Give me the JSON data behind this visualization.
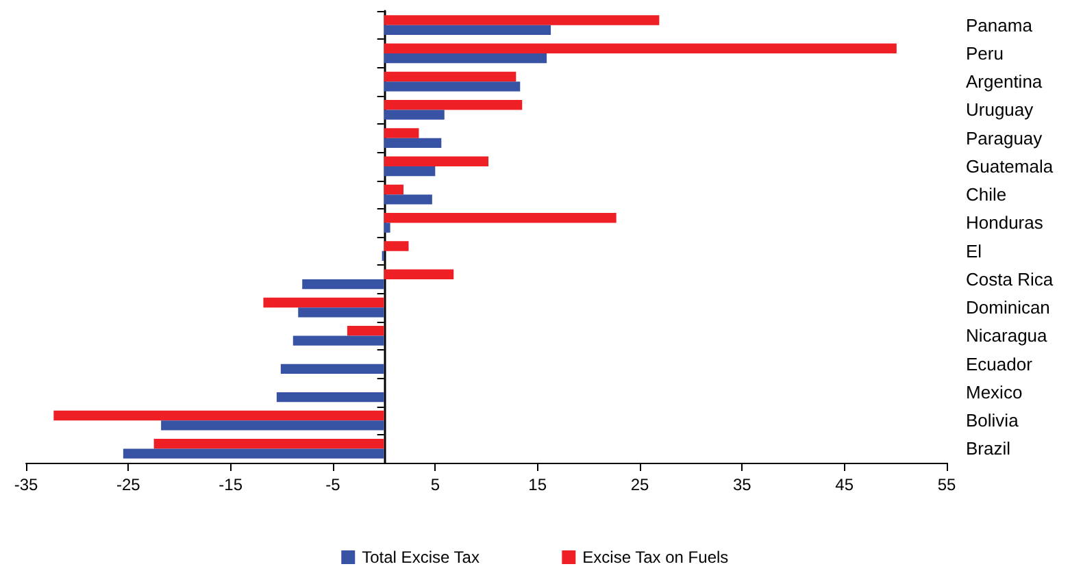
{
  "chart_data": {
    "type": "bar",
    "orientation": "horizontal",
    "categories": [
      "Panama",
      "Peru",
      "Argentina",
      "Uruguay",
      "Paraguay",
      "Guatemala",
      "Chile",
      "Honduras",
      "El",
      "Costa Rica",
      "Dominican",
      "Nicaragua",
      "Ecuador",
      "Mexico",
      "Bolivia",
      "Brazil"
    ],
    "series": [
      {
        "name": "Total Excise Tax",
        "color": "#3953a4",
        "values": [
          16.3,
          15.9,
          13.3,
          5.9,
          5.6,
          5.0,
          4.7,
          0.6,
          -0.2,
          -8.0,
          -8.4,
          -8.9,
          -10.1,
          -10.5,
          -21.8,
          -25.5
        ]
      },
      {
        "name": "Excise Tax on Fuels",
        "color": "#ee1f25",
        "values": [
          26.9,
          50.1,
          12.9,
          13.5,
          3.4,
          10.2,
          1.9,
          22.7,
          2.4,
          6.8,
          -11.8,
          -3.6,
          null,
          null,
          -32.3,
          -22.5
        ]
      }
    ],
    "xlim": [
      -35,
      55
    ],
    "xticks": [
      -35,
      -25,
      -15,
      -5,
      5,
      15,
      25,
      35,
      45,
      55
    ],
    "grid": false,
    "legend": "bottom"
  }
}
